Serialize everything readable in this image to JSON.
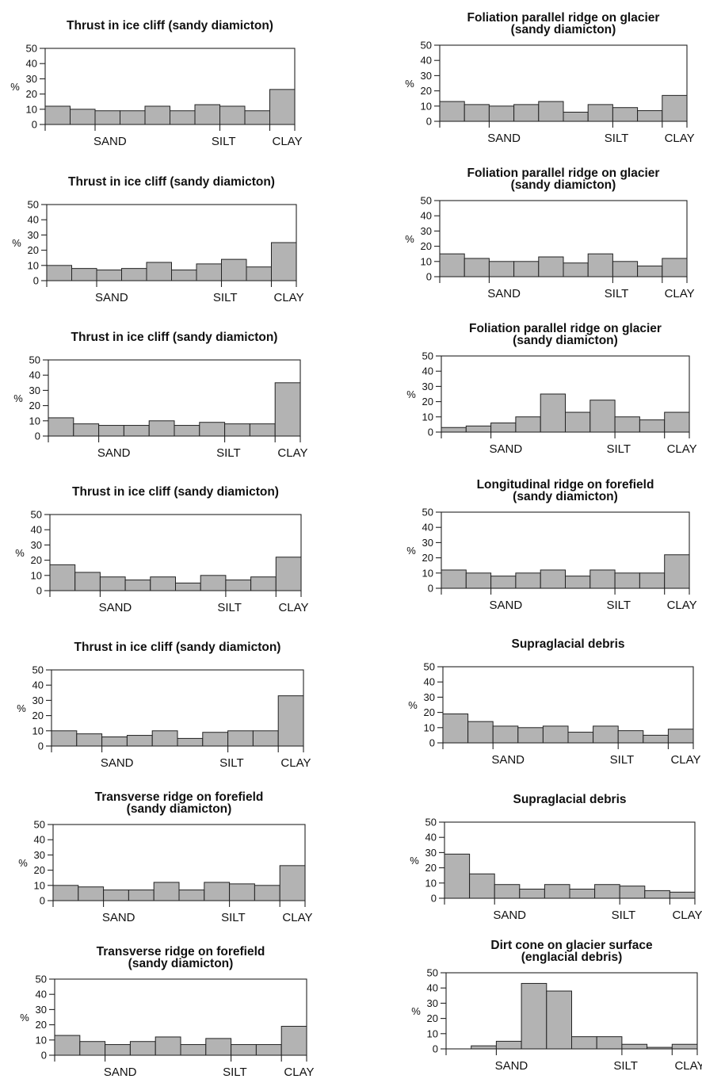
{
  "chart_data": [
    {
      "type": "bar",
      "title": [
        "Thrust in ice cliff (sandy diamicton)"
      ],
      "ylabel": "%",
      "yticks": [
        0,
        10,
        20,
        30,
        40,
        50
      ],
      "ylim": [
        0,
        50
      ],
      "class_labels": [
        "SAND",
        "SILT",
        "CLAY"
      ],
      "values": [
        12,
        10,
        9,
        9,
        12,
        9,
        13,
        12,
        9,
        23
      ]
    },
    {
      "type": "bar",
      "title": [
        "Foliation parallel ridge on glacier",
        "(sandy diamicton)"
      ],
      "ylabel": "%",
      "yticks": [
        0,
        10,
        20,
        30,
        40,
        50
      ],
      "ylim": [
        0,
        50
      ],
      "class_labels": [
        "SAND",
        "SILT",
        "CLAY"
      ],
      "values": [
        13,
        11,
        10,
        11,
        13,
        6,
        11,
        9,
        7,
        17
      ]
    },
    {
      "type": "bar",
      "title": [
        "Thrust in ice cliff (sandy diamicton)"
      ],
      "ylabel": "%",
      "yticks": [
        0,
        10,
        20,
        30,
        40,
        50
      ],
      "ylim": [
        0,
        50
      ],
      "class_labels": [
        "SAND",
        "SILT",
        "CLAY"
      ],
      "values": [
        10,
        8,
        7,
        8,
        12,
        7,
        11,
        14,
        9,
        25
      ]
    },
    {
      "type": "bar",
      "title": [
        "Foliation parallel ridge on glacier",
        "(sandy diamicton)"
      ],
      "ylabel": "%",
      "yticks": [
        0,
        10,
        20,
        30,
        40,
        50
      ],
      "ylim": [
        0,
        50
      ],
      "class_labels": [
        "SAND",
        "SILT",
        "CLAY"
      ],
      "values": [
        15,
        12,
        10,
        10,
        13,
        9,
        15,
        10,
        7,
        12
      ]
    },
    {
      "type": "bar",
      "title": [
        "Thrust in ice cliff (sandy diamicton)"
      ],
      "ylabel": "%",
      "yticks": [
        0,
        10,
        20,
        30,
        40,
        50
      ],
      "ylim": [
        0,
        50
      ],
      "class_labels": [
        "SAND",
        "SILT",
        "CLAY"
      ],
      "values": [
        12,
        8,
        7,
        7,
        10,
        7,
        9,
        8,
        8,
        35
      ]
    },
    {
      "type": "bar",
      "title": [
        "Foliation parallel ridge on glacier",
        "(sandy diamicton)"
      ],
      "ylabel": "%",
      "yticks": [
        0,
        10,
        20,
        30,
        40,
        50
      ],
      "ylim": [
        0,
        50
      ],
      "class_labels": [
        "SAND",
        "SILT",
        "CLAY"
      ],
      "values": [
        3,
        4,
        6,
        10,
        25,
        13,
        21,
        10,
        8,
        13
      ]
    },
    {
      "type": "bar",
      "title": [
        "Thrust in ice cliff (sandy diamicton)"
      ],
      "ylabel": "%",
      "yticks": [
        0,
        10,
        20,
        30,
        40,
        50
      ],
      "ylim": [
        0,
        50
      ],
      "class_labels": [
        "SAND",
        "SILT",
        "CLAY"
      ],
      "values": [
        17,
        12,
        9,
        7,
        9,
        5,
        10,
        7,
        9,
        22
      ]
    },
    {
      "type": "bar",
      "title": [
        "Longitudinal ridge on forefield",
        "(sandy diamicton)"
      ],
      "ylabel": "%",
      "yticks": [
        0,
        10,
        20,
        30,
        40,
        50
      ],
      "ylim": [
        0,
        50
      ],
      "class_labels": [
        "SAND",
        "SILT",
        "CLAY"
      ],
      "values": [
        12,
        10,
        8,
        10,
        12,
        8,
        12,
        10,
        10,
        22
      ]
    },
    {
      "type": "bar",
      "title": [
        "Thrust in ice cliff (sandy diamicton)"
      ],
      "ylabel": "%",
      "yticks": [
        0,
        10,
        20,
        30,
        40,
        50
      ],
      "ylim": [
        0,
        50
      ],
      "class_labels": [
        "SAND",
        "SILT",
        "CLAY"
      ],
      "values": [
        10,
        8,
        6,
        7,
        10,
        5,
        9,
        10,
        10,
        33
      ]
    },
    {
      "type": "bar",
      "title": [
        "Supraglacial debris"
      ],
      "ylabel": "%",
      "yticks": [
        0,
        10,
        20,
        30,
        40,
        50
      ],
      "ylim": [
        0,
        50
      ],
      "class_labels": [
        "SAND",
        "SILT",
        "CLAY"
      ],
      "values": [
        19,
        14,
        11,
        10,
        11,
        7,
        11,
        8,
        5,
        9
      ]
    },
    {
      "type": "bar",
      "title": [
        "Transverse ridge on forefield",
        "(sandy diamicton)"
      ],
      "ylabel": "%",
      "yticks": [
        0,
        10,
        20,
        30,
        40,
        50
      ],
      "ylim": [
        0,
        50
      ],
      "class_labels": [
        "SAND",
        "SILT",
        "CLAY"
      ],
      "values": [
        10,
        9,
        7,
        7,
        12,
        7,
        12,
        11,
        10,
        23
      ]
    },
    {
      "type": "bar",
      "title": [
        "Supraglacial debris"
      ],
      "ylabel": "%",
      "yticks": [
        0,
        10,
        20,
        30,
        40,
        50
      ],
      "ylim": [
        0,
        50
      ],
      "class_labels": [
        "SAND",
        "SILT",
        "CLAY"
      ],
      "values": [
        29,
        16,
        9,
        6,
        9,
        6,
        9,
        8,
        5,
        4
      ]
    },
    {
      "type": "bar",
      "title": [
        "Transverse ridge on forefield",
        "(sandy diamicton)"
      ],
      "ylabel": "%",
      "yticks": [
        0,
        10,
        20,
        30,
        40,
        50
      ],
      "ylim": [
        0,
        50
      ],
      "class_labels": [
        "SAND",
        "SILT",
        "CLAY"
      ],
      "values": [
        13,
        9,
        7,
        9,
        12,
        7,
        11,
        7,
        7,
        19
      ]
    },
    {
      "type": "bar",
      "title": [
        "Dirt cone on glacier surface",
        "(englacial debris)"
      ],
      "ylabel": "%",
      "yticks": [
        0,
        10,
        20,
        30,
        40,
        50
      ],
      "ylim": [
        0,
        50
      ],
      "class_labels": [
        "SAND",
        "SILT",
        "CLAY"
      ],
      "values": [
        0,
        2,
        5,
        43,
        38,
        8,
        8,
        3,
        1,
        3
      ]
    }
  ],
  "colors": {
    "bar_fill": "#b3b3b3",
    "line": "#222222",
    "text": "#111111",
    "background": "#ffffff"
  }
}
